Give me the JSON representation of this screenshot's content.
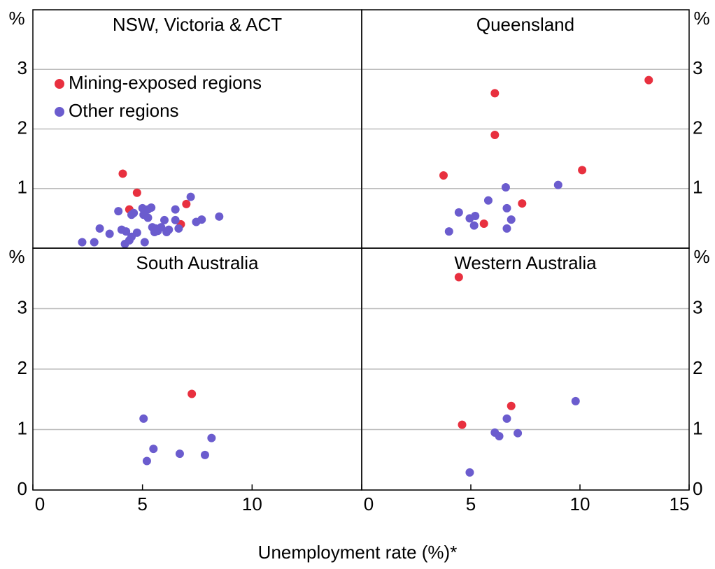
{
  "chart_data": [
    {
      "type": "scatter",
      "title": "NSW, Victoria & ACT",
      "y_unit": "%",
      "xlim": [
        0,
        15
      ],
      "ylim": [
        0,
        4
      ],
      "yticks": [
        1,
        2,
        3
      ],
      "grid": true,
      "legend": "upper left",
      "series": [
        {
          "name": "Mining-exposed regions",
          "color": "#e8303f",
          "x": [
            4.1,
            4.75,
            4.4,
            7.0,
            6.75
          ],
          "values": [
            1.25,
            0.93,
            0.65,
            0.74,
            0.4
          ]
        },
        {
          "name": "Other regions",
          "color": "#6b5cce",
          "x": [
            2.25,
            2.8,
            3.05,
            3.5,
            3.9,
            4.05,
            4.25,
            4.2,
            4.4,
            4.5,
            4.5,
            4.6,
            4.75,
            5.0,
            5.05,
            5.1,
            5.1,
            5.25,
            5.4,
            5.45,
            5.55,
            5.7,
            5.85,
            6.0,
            6.1,
            6.2,
            6.5,
            6.5,
            6.65,
            7.2,
            7.45,
            7.7,
            8.5,
            5.25,
            5.6
          ],
          "values": [
            0.1,
            0.1,
            0.33,
            0.24,
            0.62,
            0.31,
            0.28,
            0.07,
            0.13,
            0.19,
            0.56,
            0.59,
            0.26,
            0.67,
            0.56,
            0.1,
            0.62,
            0.51,
            0.68,
            0.35,
            0.27,
            0.29,
            0.35,
            0.47,
            0.27,
            0.31,
            0.65,
            0.47,
            0.33,
            0.86,
            0.44,
            0.48,
            0.53,
            0.65,
            0.33
          ]
        }
      ]
    },
    {
      "type": "scatter",
      "title": "Queensland",
      "y_unit": "%",
      "xlim": [
        0,
        15
      ],
      "ylim": [
        0,
        4
      ],
      "yticks": [
        1,
        2,
        3
      ],
      "grid": true,
      "series": [
        {
          "color": "#e8303f",
          "x": [
            3.75,
            6.1,
            6.1,
            5.6,
            7.35,
            10.1,
            13.15
          ],
          "values": [
            1.22,
            2.6,
            1.9,
            0.41,
            0.75,
            1.31,
            2.82
          ]
        },
        {
          "color": "#6b5cce",
          "x": [
            4.0,
            4.45,
            4.95,
            5.15,
            5.2,
            5.8,
            6.6,
            6.65,
            6.65,
            6.85,
            9.0
          ],
          "values": [
            0.28,
            0.6,
            0.5,
            0.38,
            0.54,
            0.8,
            1.02,
            0.67,
            0.33,
            0.48,
            1.06
          ]
        }
      ]
    },
    {
      "type": "scatter",
      "title": "South Australia",
      "y_unit": "%",
      "xlim": [
        0,
        15
      ],
      "ylim": [
        0,
        4
      ],
      "xticks": [
        0,
        5,
        10
      ],
      "yticks": [
        0,
        1,
        2,
        3
      ],
      "grid": true,
      "series": [
        {
          "color": "#e8303f",
          "x": [
            7.25
          ],
          "values": [
            1.59
          ]
        },
        {
          "color": "#6b5cce",
          "x": [
            5.05,
            5.5,
            5.2,
            6.7,
            7.85,
            8.15
          ],
          "values": [
            1.18,
            0.68,
            0.48,
            0.6,
            0.58,
            0.86
          ]
        }
      ]
    },
    {
      "type": "scatter",
      "title": "Western Australia",
      "y_unit": "%",
      "xlim": [
        0,
        15
      ],
      "ylim": [
        0,
        4
      ],
      "xticks": [
        0,
        5,
        10,
        15
      ],
      "yticks": [
        0,
        1,
        2,
        3
      ],
      "grid": true,
      "series": [
        {
          "color": "#e8303f",
          "x": [
            4.45,
            4.6,
            6.85
          ],
          "values": [
            3.52,
            1.08,
            1.39
          ]
        },
        {
          "color": "#6b5cce",
          "x": [
            4.95,
            6.1,
            6.3,
            6.65,
            7.15,
            9.8
          ],
          "values": [
            0.29,
            0.95,
            0.89,
            1.18,
            0.94,
            1.47
          ]
        }
      ]
    }
  ],
  "x_label": "Unemployment rate (%)*"
}
